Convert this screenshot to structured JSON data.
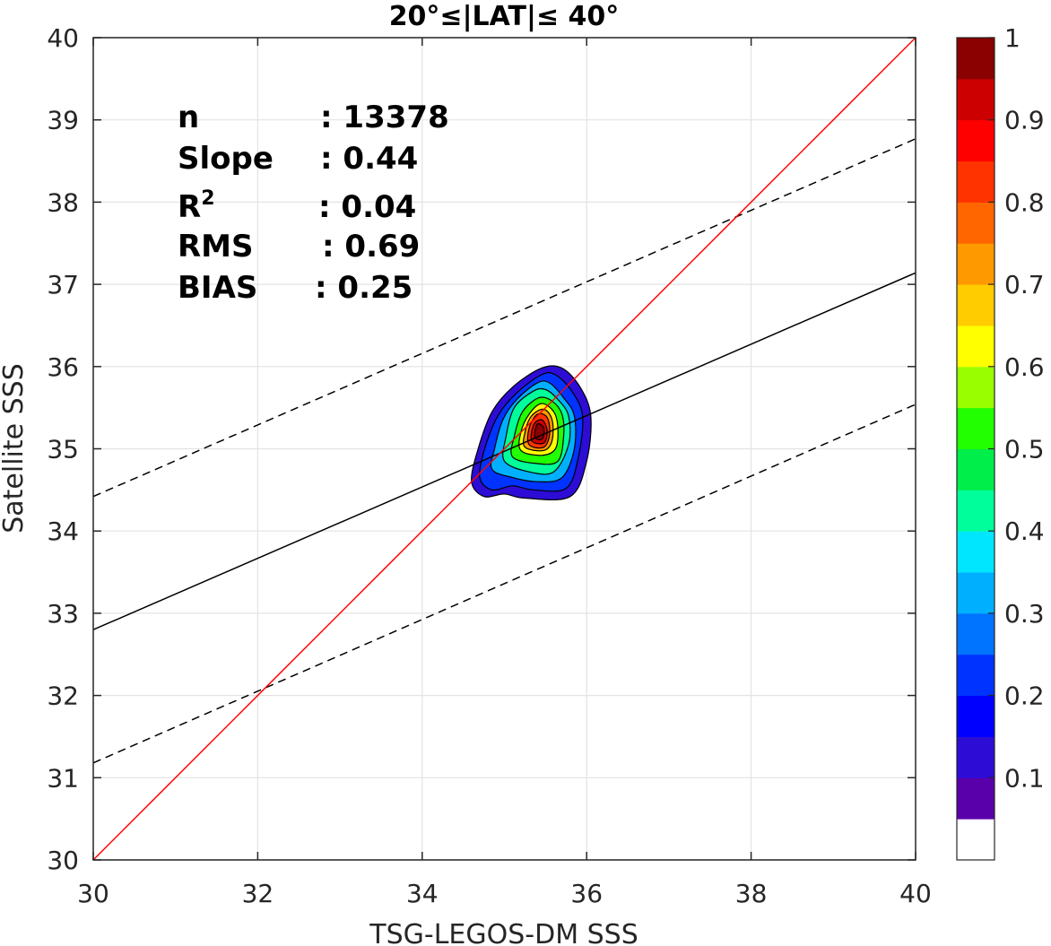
{
  "chart_data": {
    "type": "heatmap",
    "title": "20°≤|LAT|≤ 40°",
    "xlabel": "TSG-LEGOS-DM SSS",
    "ylabel": "Satellite SSS",
    "xlim": [
      30,
      40
    ],
    "ylim": [
      30,
      40
    ],
    "xticks": [
      "30",
      "32",
      "34",
      "36",
      "38",
      "40"
    ],
    "yticks": [
      "30",
      "31",
      "32",
      "33",
      "34",
      "35",
      "36",
      "37",
      "38",
      "39",
      "40"
    ],
    "grid": true,
    "stats": [
      {
        "label": "n",
        "value": ": 13378"
      },
      {
        "label": "Slope",
        "value": ": 0.44"
      },
      {
        "label": "R",
        "sup": "2",
        "value": ": 0.04"
      },
      {
        "label": "RMS",
        "value": ": 0.69"
      },
      {
        "label": "BIAS",
        "value": ": 0.25"
      }
    ],
    "lines": {
      "identity": {
        "x": [
          30,
          40
        ],
        "y": [
          30,
          40
        ],
        "color": "#ff0000",
        "style": "solid"
      },
      "regression": {
        "x": [
          30,
          40
        ],
        "y": [
          32.8,
          37.14
        ],
        "color": "#000000",
        "style": "solid"
      },
      "upper_bound": {
        "x": [
          30,
          40
        ],
        "y": [
          34.42,
          38.77
        ],
        "color": "#000000",
        "style": "dashed"
      },
      "lower_bound": {
        "x": [
          30,
          40
        ],
        "y": [
          31.18,
          35.54
        ],
        "color": "#000000",
        "style": "dashed"
      }
    },
    "density": {
      "center": [
        35.42,
        35.2
      ],
      "levels": [
        0.05,
        0.15,
        0.25,
        0.35,
        0.45,
        0.55,
        0.65,
        0.75,
        0.85,
        0.95
      ],
      "contours": [
        [
          [
            34.6,
            34.6
          ],
          [
            34.75,
            34.42
          ],
          [
            35.0,
            34.45
          ],
          [
            35.25,
            34.4
          ],
          [
            35.8,
            34.42
          ],
          [
            36.0,
            34.85
          ],
          [
            36.05,
            35.4
          ],
          [
            35.92,
            35.75
          ],
          [
            35.7,
            35.98
          ],
          [
            35.45,
            35.98
          ],
          [
            35.1,
            35.75
          ],
          [
            34.85,
            35.45
          ],
          [
            34.68,
            35.0
          ]
        ],
        [
          [
            34.7,
            34.65
          ],
          [
            34.85,
            34.5
          ],
          [
            35.1,
            34.55
          ],
          [
            35.35,
            34.5
          ],
          [
            35.75,
            34.52
          ],
          [
            35.9,
            34.9
          ],
          [
            35.95,
            35.4
          ],
          [
            35.82,
            35.7
          ],
          [
            35.62,
            35.9
          ],
          [
            35.45,
            35.9
          ],
          [
            35.15,
            35.68
          ],
          [
            34.92,
            35.4
          ],
          [
            34.76,
            35.0
          ]
        ],
        [
          [
            34.85,
            34.75
          ],
          [
            35.1,
            34.65
          ],
          [
            35.4,
            34.6
          ],
          [
            35.7,
            34.65
          ],
          [
            35.85,
            35.0
          ],
          [
            35.85,
            35.4
          ],
          [
            35.72,
            35.62
          ],
          [
            35.55,
            35.8
          ],
          [
            35.4,
            35.8
          ],
          [
            35.15,
            35.6
          ],
          [
            34.98,
            35.35
          ],
          [
            34.88,
            35.0
          ]
        ],
        [
          [
            35.0,
            34.85
          ],
          [
            35.3,
            34.72
          ],
          [
            35.6,
            34.72
          ],
          [
            35.78,
            35.05
          ],
          [
            35.78,
            35.4
          ],
          [
            35.65,
            35.6
          ],
          [
            35.5,
            35.72
          ],
          [
            35.35,
            35.7
          ],
          [
            35.12,
            35.5
          ],
          [
            35.02,
            35.15
          ]
        ],
        [
          [
            35.1,
            34.9
          ],
          [
            35.4,
            34.82
          ],
          [
            35.65,
            34.85
          ],
          [
            35.72,
            35.15
          ],
          [
            35.7,
            35.42
          ],
          [
            35.58,
            35.58
          ],
          [
            35.42,
            35.62
          ],
          [
            35.22,
            35.45
          ],
          [
            35.12,
            35.15
          ]
        ],
        [
          [
            35.2,
            34.98
          ],
          [
            35.45,
            34.92
          ],
          [
            35.62,
            35.0
          ],
          [
            35.65,
            35.25
          ],
          [
            35.6,
            35.45
          ],
          [
            35.45,
            35.55
          ],
          [
            35.3,
            35.42
          ],
          [
            35.2,
            35.2
          ]
        ],
        [
          [
            35.25,
            35.02
          ],
          [
            35.48,
            34.98
          ],
          [
            35.58,
            35.1
          ],
          [
            35.58,
            35.35
          ],
          [
            35.48,
            35.48
          ],
          [
            35.33,
            35.4
          ],
          [
            35.25,
            35.2
          ]
        ],
        [
          [
            35.3,
            35.05
          ],
          [
            35.48,
            35.02
          ],
          [
            35.55,
            35.18
          ],
          [
            35.52,
            35.38
          ],
          [
            35.4,
            35.42
          ],
          [
            35.3,
            35.25
          ]
        ],
        [
          [
            35.33,
            35.1
          ],
          [
            35.48,
            35.07
          ],
          [
            35.52,
            35.22
          ],
          [
            35.46,
            35.35
          ],
          [
            35.36,
            35.3
          ]
        ],
        [
          [
            35.37,
            35.14
          ],
          [
            35.46,
            35.12
          ],
          [
            35.48,
            35.25
          ],
          [
            35.4,
            35.3
          ]
        ]
      ]
    },
    "colorbar": {
      "ticks": [
        "0.1",
        "0.2",
        "0.3",
        "0.4",
        "0.5",
        "0.6",
        "0.7",
        "0.8",
        "0.9",
        "1"
      ],
      "range": [
        0,
        1
      ],
      "colors": [
        "#ffffff",
        "#5a00aa",
        "#2d0cd6",
        "#0000ff",
        "#0033ff",
        "#0073ff",
        "#00b0ff",
        "#00e6ff",
        "#00ff9a",
        "#00ee4a",
        "#22ff00",
        "#99ff00",
        "#ffff00",
        "#ffcc00",
        "#ff9900",
        "#ff6600",
        "#ff3300",
        "#ff0000",
        "#cc0000",
        "#8b0000"
      ]
    }
  }
}
